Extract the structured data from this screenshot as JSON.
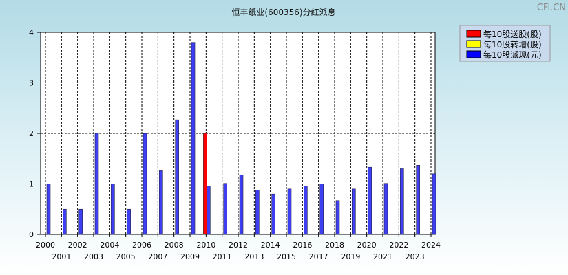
{
  "chart_data": {
    "type": "bar",
    "title": "恒丰纸业(600356)分红派息",
    "watermark": "CFi.CN",
    "xlabel": "",
    "ylabel": "",
    "ylim": [
      0,
      4
    ],
    "yticks": [
      "0",
      "1",
      "2",
      "3",
      "4"
    ],
    "grid": true,
    "legend_position": "top-right",
    "categories": [
      "2000",
      "2001",
      "2002",
      "2003",
      "2004",
      "2005",
      "2006",
      "2007",
      "2008",
      "2009",
      "2010",
      "2011",
      "2012",
      "2013",
      "2014",
      "2015",
      "2016",
      "2017",
      "2018",
      "2019",
      "2020",
      "2021",
      "2022",
      "2023",
      "2024"
    ],
    "series": [
      {
        "name": "每10股送股(股)",
        "color": "#ff0000",
        "values": [
          0,
          0,
          0,
          0,
          0,
          0,
          0,
          0,
          0,
          0,
          2,
          0,
          0,
          0,
          0,
          0,
          0,
          0,
          0,
          0,
          0,
          0,
          0,
          0,
          0
        ]
      },
      {
        "name": "每10股转增(股)",
        "color": "#ffff00",
        "values": [
          0,
          0,
          0,
          0,
          0,
          0,
          0,
          0,
          0,
          0,
          0,
          0,
          0,
          0,
          0,
          0,
          0,
          0,
          0,
          0,
          0,
          0,
          0,
          0,
          0
        ]
      },
      {
        "name": "每10股派现(元)",
        "color": "#0000ff",
        "values": [
          1.0,
          0.5,
          0.5,
          2.0,
          1.0,
          0.5,
          2.0,
          1.26,
          2.27,
          3.8,
          0.96,
          1.01,
          1.18,
          0.88,
          0.8,
          0.9,
          0.96,
          1.0,
          0.67,
          0.9,
          1.33,
          1.01,
          1.3,
          1.37,
          1.2
        ]
      }
    ]
  }
}
